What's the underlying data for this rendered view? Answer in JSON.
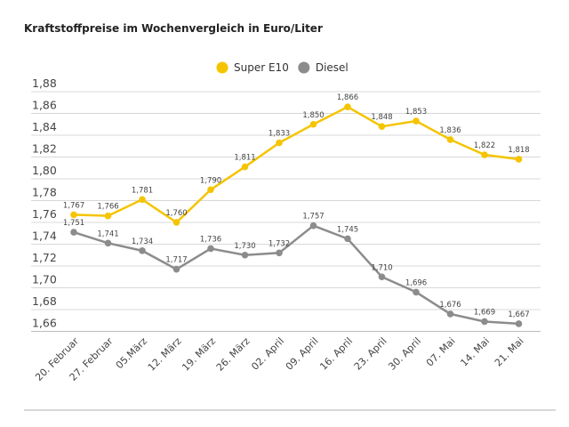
{
  "chart_data": {
    "type": "line",
    "title": "Kraftstoffpreise im Wochenvergleich in Euro/Liter",
    "categories": [
      "20. Februar",
      "27. Februar",
      "05.März",
      "12. März",
      "19. März",
      "26. März",
      "02. April",
      "09. April",
      "16. April",
      "23. April",
      "30. April",
      "07. Mai",
      "14. Mai",
      "21. Mai"
    ],
    "series": [
      {
        "name": "Super E10",
        "color": "#f5c400",
        "values": [
          1.767,
          1.766,
          1.781,
          1.76,
          1.79,
          1.811,
          1.833,
          1.85,
          1.866,
          1.848,
          1.853,
          1.836,
          1.822,
          1.818
        ],
        "labels": [
          "1,767",
          "1,766",
          "1,781",
          "1,760",
          "1,790",
          "1,811",
          "1,833",
          "1,850",
          "1,866",
          "1,848",
          "1,853",
          "1,836",
          "1,822",
          "1,818"
        ]
      },
      {
        "name": "Diesel",
        "color": "#8c8c8c",
        "values": [
          1.751,
          1.741,
          1.734,
          1.717,
          1.736,
          1.73,
          1.732,
          1.757,
          1.745,
          1.71,
          1.696,
          1.676,
          1.669,
          1.667
        ],
        "labels": [
          "1,751",
          "1,741",
          "1,734",
          "1,717",
          "1,736",
          "1,730",
          "1,732",
          "1,757",
          "1,745",
          "1,710",
          "1,696",
          "1,676",
          "1,669",
          "1,667"
        ]
      }
    ],
    "ylim": [
      1.66,
      1.88
    ],
    "yticks": [
      "1,66",
      "1,68",
      "1,70",
      "1,72",
      "1,74",
      "1,76",
      "1,78",
      "1,80",
      "1,82",
      "1,84",
      "1,86",
      "1,88"
    ],
    "grid": true,
    "legend": "top-center"
  }
}
